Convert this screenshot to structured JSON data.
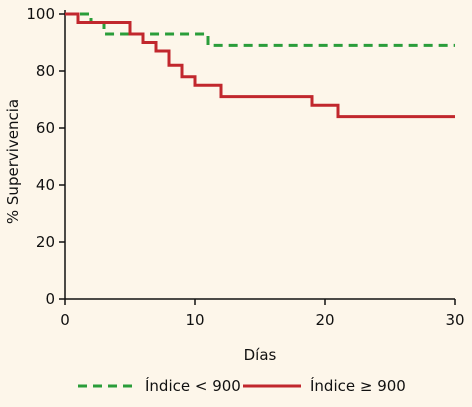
{
  "chart_data": {
    "type": "line",
    "title": "",
    "xlabel": "Días",
    "ylabel": "% Supervivencia",
    "xlim": [
      0,
      30
    ],
    "ylim": [
      0,
      100
    ],
    "xticks": [
      0,
      10,
      20,
      30
    ],
    "yticks": [
      0,
      20,
      40,
      60,
      80,
      100
    ],
    "grid": false,
    "legend_position": "bottom",
    "series": [
      {
        "name": "Índice < 900",
        "color": "#2a9d3a",
        "style": "dashed",
        "step": true,
        "x": [
          0,
          2,
          3,
          11,
          30
        ],
        "y": [
          100,
          97,
          93,
          89,
          89
        ]
      },
      {
        "name": "Índice ≥ 900",
        "color": "#c1272d",
        "style": "solid",
        "step": true,
        "x": [
          0,
          1,
          5,
          6,
          7,
          8,
          9,
          10,
          12,
          19,
          21,
          30
        ],
        "y": [
          100,
          97,
          93,
          90,
          87,
          82,
          78,
          75,
          71,
          68,
          64,
          64
        ]
      }
    ]
  }
}
